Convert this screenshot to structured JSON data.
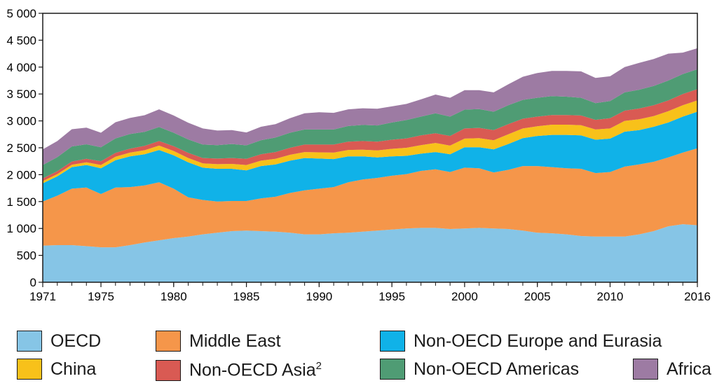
{
  "chart_data": {
    "type": "area",
    "stacked": true,
    "title": "",
    "xlabel": "",
    "ylabel": "",
    "ylim": [
      0,
      5000
    ],
    "yticks": [
      0,
      500,
      1000,
      1500,
      2000,
      2500,
      3000,
      3500,
      4000,
      4500,
      5000
    ],
    "ytick_labels": [
      "0",
      "500",
      "1 000",
      "1 500",
      "2 000",
      "2 500",
      "3 000",
      "3 500",
      "4 000",
      "4 500",
      "5 000"
    ],
    "xlim": [
      1971,
      2016
    ],
    "xtick_labels": [
      "1971",
      "1975",
      "1980",
      "1985",
      "1990",
      "1995",
      "2000",
      "2005",
      "2010",
      "2016"
    ],
    "xtick_values": [
      1971,
      1975,
      1980,
      1985,
      1990,
      1995,
      2000,
      2005,
      2010,
      2016
    ],
    "x": [
      1971,
      1972,
      1973,
      1974,
      1975,
      1976,
      1977,
      1978,
      1979,
      1980,
      1981,
      1982,
      1983,
      1984,
      1985,
      1986,
      1987,
      1988,
      1989,
      1990,
      1991,
      1992,
      1993,
      1994,
      1995,
      1996,
      1997,
      1998,
      1999,
      2000,
      2001,
      2002,
      2003,
      2004,
      2005,
      2006,
      2007,
      2008,
      2009,
      2010,
      2011,
      2012,
      2013,
      2014,
      2015,
      2016
    ],
    "series": [
      {
        "name": "OECD",
        "color": "#86c5e6",
        "values": [
          680,
          690,
          690,
          670,
          650,
          650,
          690,
          740,
          780,
          820,
          850,
          890,
          920,
          950,
          960,
          950,
          940,
          920,
          890,
          890,
          910,
          920,
          940,
          960,
          980,
          1000,
          1010,
          1010,
          990,
          1000,
          1010,
          1000,
          990,
          960,
          920,
          910,
          890,
          860,
          850,
          850,
          850,
          890,
          950,
          1040,
          1080,
          1060
        ]
      },
      {
        "name": "Middle East",
        "color": "#f5964a",
        "values": [
          820,
          920,
          1050,
          1090,
          990,
          1110,
          1080,
          1060,
          1080,
          920,
          730,
          640,
          580,
          560,
          550,
          610,
          650,
          740,
          820,
          850,
          860,
          940,
          970,
          980,
          1000,
          1010,
          1060,
          1090,
          1060,
          1130,
          1110,
          1040,
          1100,
          1200,
          1240,
          1230,
          1230,
          1250,
          1180,
          1200,
          1300,
          1300,
          1290,
          1280,
          1330,
          1430
        ]
      },
      {
        "name": "Non-OECD Europe and Eurasia",
        "color": "#10b2e8",
        "values": [
          340,
          360,
          400,
          420,
          480,
          510,
          570,
          580,
          600,
          620,
          650,
          600,
          610,
          600,
          570,
          600,
          600,
          600,
          600,
          560,
          520,
          480,
          430,
          380,
          360,
          340,
          320,
          320,
          330,
          380,
          390,
          430,
          480,
          520,
          560,
          600,
          620,
          620,
          620,
          620,
          650,
          640,
          650,
          650,
          670,
          680
        ]
      },
      {
        "name": "China",
        "color": "#f8c11a",
        "values": [
          40,
          40,
          45,
          50,
          60,
          65,
          70,
          75,
          80,
          80,
          80,
          80,
          85,
          90,
          100,
          100,
          105,
          110,
          110,
          115,
          120,
          120,
          125,
          130,
          140,
          150,
          160,
          170,
          160,
          160,
          170,
          170,
          180,
          180,
          180,
          190,
          190,
          190,
          190,
          190,
          200,
          200,
          200,
          210,
          210,
          210
        ]
      },
      {
        "name": "Non-OECD Asia2",
        "color": "#d95a53",
        "values": [
          50,
          55,
          60,
          65,
          70,
          70,
          75,
          80,
          85,
          90,
          95,
          100,
          105,
          110,
          115,
          120,
          125,
          130,
          140,
          145,
          150,
          155,
          160,
          165,
          170,
          175,
          180,
          180,
          180,
          190,
          190,
          190,
          190,
          180,
          180,
          180,
          180,
          180,
          180,
          190,
          190,
          200,
          200,
          200,
          210,
          210
        ]
      },
      {
        "name": "Non-OECD Americas",
        "color": "#4f9c74",
        "values": [
          250,
          260,
          280,
          270,
          260,
          270,
          270,
          260,
          260,
          250,
          250,
          250,
          250,
          260,
          250,
          260,
          270,
          280,
          280,
          280,
          280,
          290,
          300,
          300,
          320,
          340,
          350,
          370,
          360,
          350,
          350,
          340,
          350,
          350,
          350,
          350,
          340,
          330,
          310,
          320,
          340,
          350,
          360,
          370,
          370,
          370
        ]
      },
      {
        "name": "Africa",
        "color": "#9d7ba3",
        "values": [
          290,
          300,
          320,
          310,
          270,
          300,
          300,
          310,
          330,
          320,
          310,
          300,
          270,
          260,
          240,
          250,
          250,
          270,
          300,
          320,
          310,
          310,
          310,
          310,
          300,
          300,
          320,
          350,
          350,
          360,
          350,
          360,
          390,
          430,
          460,
          470,
          480,
          490,
          470,
          460,
          470,
          500,
          500,
          500,
          400,
          390
        ]
      }
    ],
    "legend": [
      {
        "label": "OECD",
        "color": "#86c5e6"
      },
      {
        "label": "Middle East",
        "color": "#f5964a"
      },
      {
        "label": "Non-OECD Europe and Eurasia",
        "color": "#10b2e8"
      },
      {
        "label": "China",
        "color": "#f8c11a"
      },
      {
        "label": "Non-OECD Asia",
        "sup": "2",
        "color": "#d95a53"
      },
      {
        "label": "Non-OECD Americas",
        "color": "#4f9c74"
      },
      {
        "label": "Africa",
        "color": "#9d7ba3"
      }
    ]
  }
}
